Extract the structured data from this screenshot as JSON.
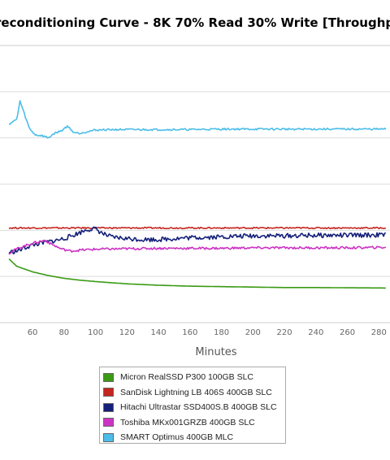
{
  "chart_data": {
    "type": "line",
    "title": "reconditioning Curve - 8K 70% Read 30% Write [Throughput",
    "xlabel": "Minutes",
    "xlim": [
      45,
      285
    ],
    "ylim": [
      0,
      6
    ],
    "x_ticks": [
      "60",
      "80",
      "100",
      "120",
      "140",
      "160",
      "180",
      "200",
      "220",
      "240",
      "260",
      "280"
    ],
    "grid": true,
    "legend": "bottom",
    "series": [
      {
        "name": "Micron RealSSD P300 100GB SLC",
        "color": "#3a9a14",
        "points": [
          [
            45,
            1.38
          ],
          [
            50,
            1.22
          ],
          [
            60,
            1.1
          ],
          [
            70,
            1.02
          ],
          [
            80,
            0.96
          ],
          [
            90,
            0.92
          ],
          [
            100,
            0.89
          ],
          [
            120,
            0.84
          ],
          [
            140,
            0.81
          ],
          [
            160,
            0.79
          ],
          [
            180,
            0.78
          ],
          [
            200,
            0.77
          ],
          [
            220,
            0.76
          ],
          [
            240,
            0.76
          ],
          [
            260,
            0.755
          ],
          [
            285,
            0.75
          ]
        ]
      },
      {
        "name": "SanDisk Lightning LB 406S 400GB SLC",
        "color": "#c4261d",
        "points": [
          [
            45,
            2.05
          ],
          [
            60,
            2.05
          ],
          [
            80,
            2.05
          ],
          [
            100,
            2.05
          ],
          [
            120,
            2.05
          ],
          [
            140,
            2.05
          ],
          [
            160,
            2.05
          ],
          [
            180,
            2.05
          ],
          [
            200,
            2.05
          ],
          [
            220,
            2.05
          ],
          [
            240,
            2.05
          ],
          [
            260,
            2.05
          ],
          [
            285,
            2.05
          ]
        ]
      },
      {
        "name": "Hitachi Ultrastar SSD400S.B 400GB SLC",
        "color": "#14207a",
        "points": [
          [
            45,
            1.52
          ],
          [
            50,
            1.55
          ],
          [
            55,
            1.62
          ],
          [
            60,
            1.68
          ],
          [
            65,
            1.72
          ],
          [
            70,
            1.75
          ],
          [
            75,
            1.78
          ],
          [
            80,
            1.82
          ],
          [
            85,
            1.88
          ],
          [
            90,
            1.95
          ],
          [
            95,
            2.02
          ],
          [
            100,
            2.03
          ],
          [
            105,
            1.92
          ],
          [
            110,
            1.85
          ],
          [
            120,
            1.82
          ],
          [
            130,
            1.8
          ],
          [
            140,
            1.8
          ],
          [
            150,
            1.82
          ],
          [
            160,
            1.84
          ],
          [
            170,
            1.85
          ],
          [
            180,
            1.86
          ],
          [
            190,
            1.87
          ],
          [
            200,
            1.88
          ],
          [
            220,
            1.88
          ],
          [
            240,
            1.89
          ],
          [
            260,
            1.89
          ],
          [
            285,
            1.9
          ]
        ]
      },
      {
        "name": "Toshiba MKx001GRZB 400GB SLC",
        "color": "#cc33c4",
        "points": [
          [
            45,
            1.5
          ],
          [
            50,
            1.6
          ],
          [
            55,
            1.66
          ],
          [
            60,
            1.72
          ],
          [
            65,
            1.76
          ],
          [
            68,
            1.78
          ],
          [
            72,
            1.7
          ],
          [
            78,
            1.6
          ],
          [
            84,
            1.55
          ],
          [
            90,
            1.57
          ],
          [
            100,
            1.59
          ],
          [
            120,
            1.6
          ],
          [
            140,
            1.61
          ],
          [
            160,
            1.61
          ],
          [
            180,
            1.61
          ],
          [
            200,
            1.62
          ],
          [
            220,
            1.62
          ],
          [
            240,
            1.62
          ],
          [
            260,
            1.62
          ],
          [
            285,
            1.63
          ]
        ]
      },
      {
        "name": "SMART Optimus 400GB MLC",
        "color": "#4cbde8",
        "points": [
          [
            45,
            4.3
          ],
          [
            50,
            4.4
          ],
          [
            52,
            4.8
          ],
          [
            54,
            4.6
          ],
          [
            56,
            4.4
          ],
          [
            58,
            4.2
          ],
          [
            62,
            4.06
          ],
          [
            66,
            4.05
          ],
          [
            70,
            4.0
          ],
          [
            74,
            4.1
          ],
          [
            78,
            4.15
          ],
          [
            82,
            4.25
          ],
          [
            84,
            4.2
          ],
          [
            86,
            4.12
          ],
          [
            90,
            4.1
          ],
          [
            95,
            4.14
          ],
          [
            100,
            4.17
          ],
          [
            110,
            4.18
          ],
          [
            120,
            4.18
          ],
          [
            140,
            4.18
          ],
          [
            160,
            4.18
          ],
          [
            180,
            4.19
          ],
          [
            200,
            4.19
          ],
          [
            220,
            4.19
          ],
          [
            240,
            4.19
          ],
          [
            260,
            4.19
          ],
          [
            285,
            4.19
          ]
        ]
      }
    ]
  }
}
